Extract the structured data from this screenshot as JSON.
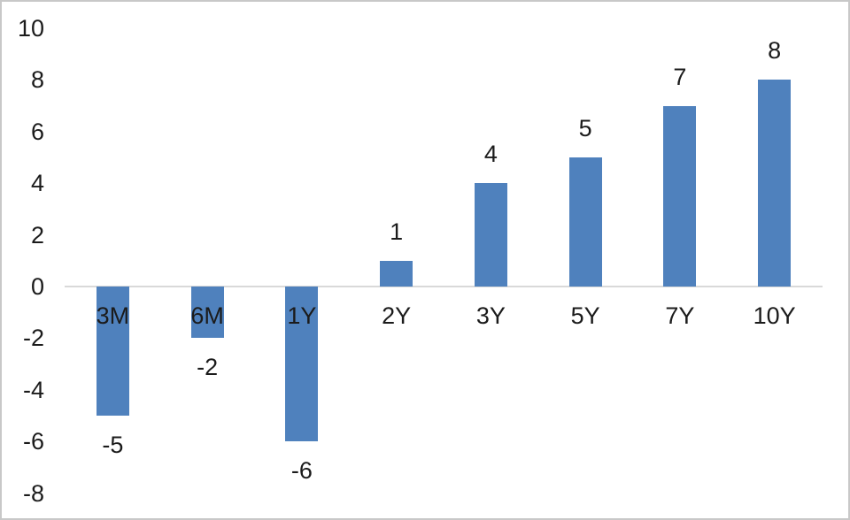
{
  "window": {
    "background": "#FFFFFF",
    "border_color": "#C8C8C8"
  },
  "chart_data": {
    "type": "bar",
    "title": "",
    "xlabel": "",
    "ylabel": "",
    "categories": [
      "3M",
      "6M",
      "1Y",
      "2Y",
      "3Y",
      "5Y",
      "7Y",
      "10Y"
    ],
    "values": [
      -5,
      -2,
      -6,
      1,
      4,
      5,
      7,
      8
    ],
    "data_labels": [
      "-5",
      "-2",
      "-6",
      "1",
      "4",
      "5",
      "7",
      "8"
    ],
    "yticks": [
      10,
      8,
      6,
      4,
      2,
      0,
      -2,
      -4,
      -6,
      -8
    ],
    "ylim": [
      -8,
      10
    ],
    "grid": false,
    "legend": "none",
    "bar_color": "#4F81BD",
    "axis_line_color": "#D9D9D9",
    "text_color": "#1B1B1B"
  }
}
